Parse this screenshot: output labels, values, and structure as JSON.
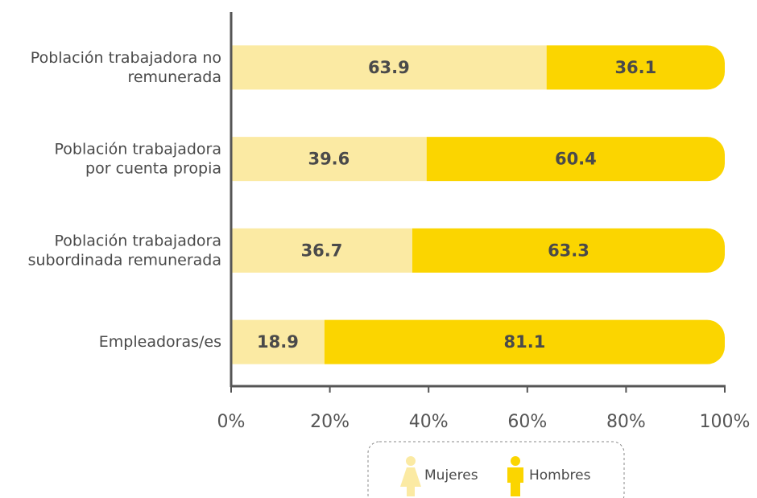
{
  "chart_data": {
    "type": "stacked_bar_horizontal",
    "categories": [
      [
        "Población trabajadora no",
        "remunerada"
      ],
      [
        "Población trabajadora",
        "por cuenta propia"
      ],
      [
        "Población trabajadora",
        "subordinada remunerada"
      ],
      [
        "Empleadoras/es"
      ]
    ],
    "series": [
      {
        "name": "Mujeres",
        "color": "#fbeaa3",
        "values": [
          63.9,
          39.6,
          36.7,
          18.9
        ]
      },
      {
        "name": "Hombres",
        "color": "#fbd500",
        "values": [
          36.1,
          60.4,
          63.3,
          81.1
        ]
      }
    ],
    "xlim": [
      0,
      100
    ],
    "xticks": [
      {
        "value": 0,
        "label": "0%"
      },
      {
        "value": 20,
        "label": "20%"
      },
      {
        "value": 40,
        "label": "40%"
      },
      {
        "value": 60,
        "label": "60%"
      },
      {
        "value": 80,
        "label": "80%"
      },
      {
        "value": 100,
        "label": "100%"
      }
    ],
    "legend": "bottom"
  }
}
